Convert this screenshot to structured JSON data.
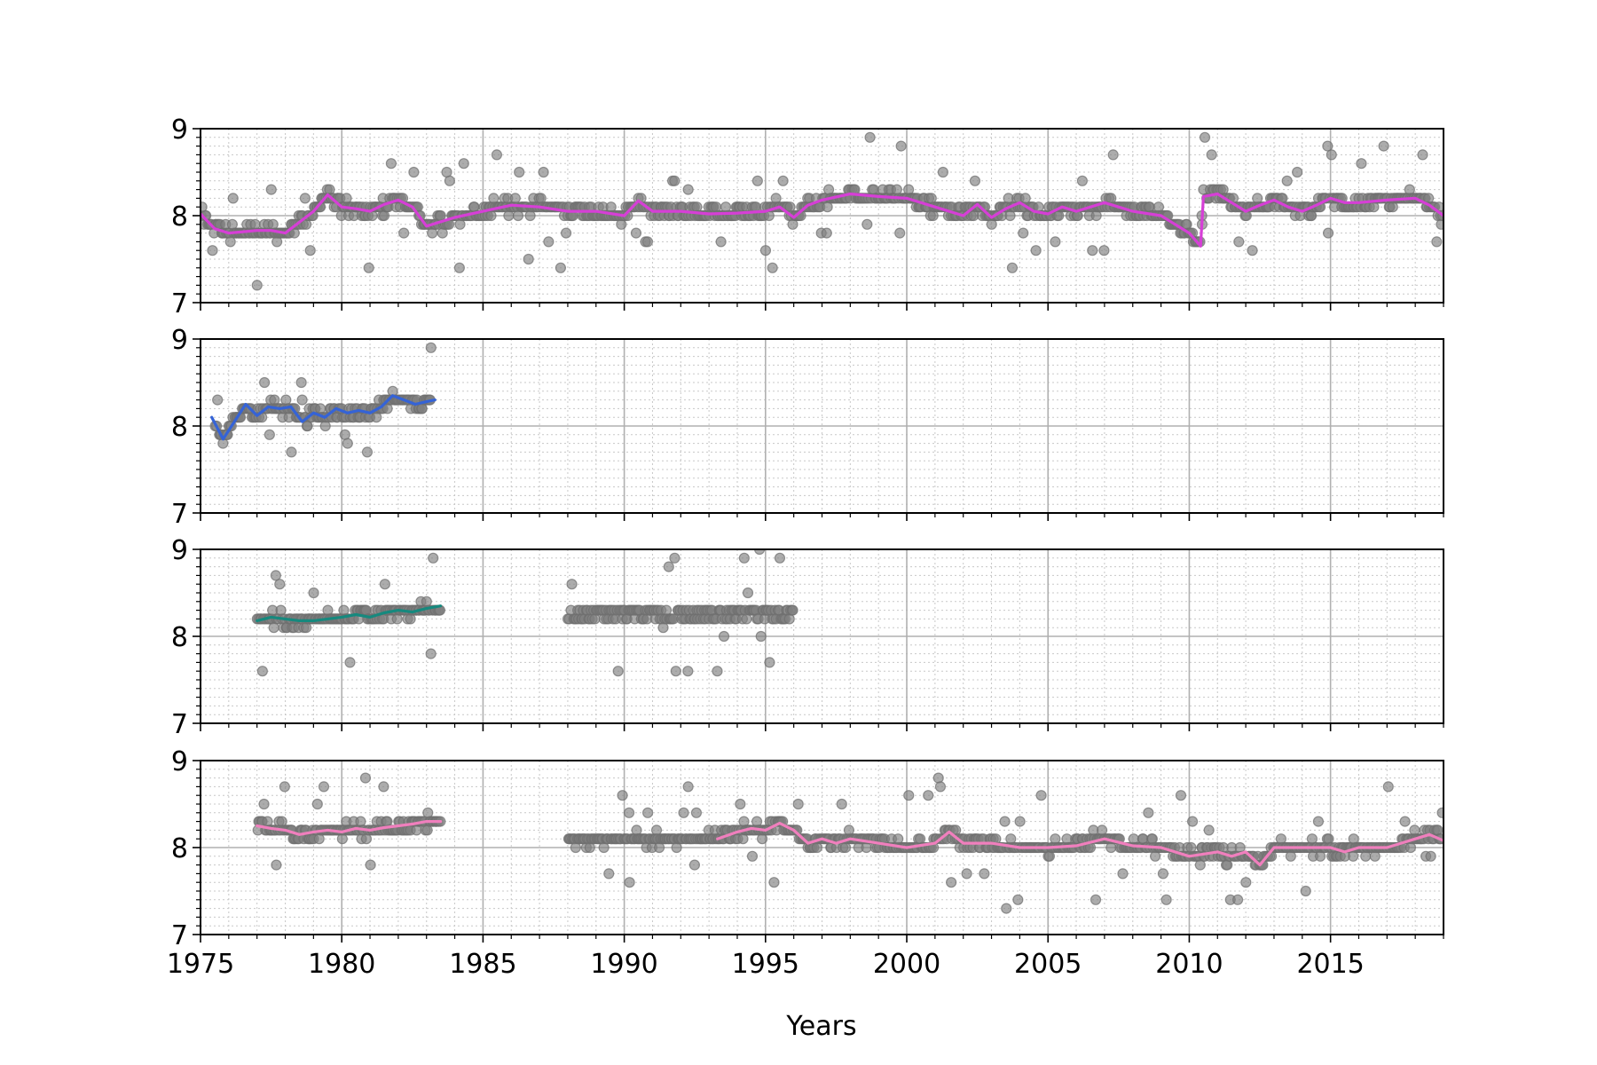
{
  "figure": {
    "xlabel": "Years"
  },
  "chart_data": [
    {
      "type": "scatter",
      "xlim": [
        1975,
        2019
      ],
      "ylim": [
        7,
        9
      ],
      "x_ticks": [
        1975,
        1980,
        1985,
        1990,
        1995,
        2000,
        2005,
        2010,
        2015
      ],
      "y_ticks": [
        7,
        8,
        9
      ],
      "grid": true,
      "scatter_color": "#808080",
      "line_color": "#d63fd6",
      "scatter_segments": [
        [
          1975.0,
          2019.0
        ]
      ],
      "scatter_level": 8.05,
      "smoothed_series": {
        "x": [
          1975.0,
          1975.5,
          1976.0,
          1977.0,
          1977.5,
          1978.0,
          1979.0,
          1979.5,
          1980.0,
          1980.5,
          1981.0,
          1981.5,
          1982.0,
          1982.5,
          1983.0,
          1984.0,
          1985.0,
          1986.0,
          1987.0,
          1988.0,
          1989.0,
          1990.0,
          1990.5,
          1991.0,
          1992.0,
          1993.0,
          1994.0,
          1995.0,
          1995.5,
          1996.0,
          1996.5,
          1997.0,
          1998.0,
          1999.0,
          2000.0,
          2001.0,
          2002.0,
          2002.5,
          2003.0,
          2003.5,
          2004.0,
          2004.5,
          2005.0,
          2005.5,
          2006.0,
          2007.0,
          2008.0,
          2009.0,
          2009.5,
          2010.0,
          2010.4,
          2010.5,
          2011.0,
          2011.5,
          2012.0,
          2012.5,
          2013.0,
          2013.5,
          2014.0,
          2014.5,
          2015.0,
          2015.5,
          2016.0,
          2017.0,
          2018.0,
          2018.5,
          2019.0
        ],
        "y": [
          8.02,
          7.85,
          7.8,
          7.83,
          7.83,
          7.8,
          8.05,
          8.24,
          8.1,
          8.08,
          8.05,
          8.13,
          8.18,
          8.1,
          7.88,
          7.98,
          8.05,
          8.12,
          8.1,
          8.05,
          8.05,
          8.0,
          8.17,
          8.05,
          8.05,
          8.02,
          8.03,
          8.05,
          8.1,
          7.98,
          8.12,
          8.18,
          8.25,
          8.22,
          8.2,
          8.1,
          8.0,
          8.13,
          7.98,
          8.08,
          8.15,
          8.05,
          8.02,
          8.1,
          8.05,
          8.15,
          8.05,
          8.0,
          7.9,
          7.8,
          7.65,
          8.22,
          8.25,
          8.15,
          8.05,
          8.12,
          8.18,
          8.1,
          8.05,
          8.12,
          8.2,
          8.15,
          8.15,
          8.18,
          8.2,
          8.12,
          8.0
        ]
      }
    },
    {
      "type": "scatter",
      "xlim": [
        1975,
        2019
      ],
      "ylim": [
        7,
        9
      ],
      "x_ticks": [
        1975,
        1980,
        1985,
        1990,
        1995,
        2000,
        2005,
        2010,
        2015
      ],
      "y_ticks": [
        7,
        8,
        9
      ],
      "grid": true,
      "scatter_color": "#808080",
      "line_color": "#3563d6",
      "scatter_segments": [
        [
          1975.5,
          1983.2
        ]
      ],
      "scatter_level": 8.1,
      "smoothed_series": {
        "x": [
          1975.4,
          1975.8,
          1976.2,
          1976.6,
          1977.0,
          1977.4,
          1977.8,
          1978.2,
          1978.6,
          1979.0,
          1979.4,
          1979.8,
          1980.2,
          1980.6,
          1981.0,
          1981.4,
          1981.8,
          1982.2,
          1982.6,
          1983.0,
          1983.3
        ],
        "y": [
          8.1,
          7.85,
          8.05,
          8.25,
          8.12,
          8.22,
          8.2,
          8.22,
          8.05,
          8.15,
          8.1,
          8.2,
          8.15,
          8.18,
          8.15,
          8.22,
          8.35,
          8.3,
          8.25,
          8.28,
          8.3
        ]
      }
    },
    {
      "type": "scatter",
      "xlim": [
        1975,
        2019
      ],
      "ylim": [
        7,
        9
      ],
      "x_ticks": [
        1975,
        1980,
        1985,
        1990,
        1995,
        2000,
        2005,
        2010,
        2015
      ],
      "y_ticks": [
        7,
        8,
        9
      ],
      "grid": true,
      "scatter_color": "#808080",
      "line_color": "#16897e",
      "scatter_segments": [
        [
          1977.0,
          1983.5
        ],
        [
          1988.0,
          1996.0
        ]
      ],
      "scatter_level": 8.25,
      "smoothed_series": {
        "x": [
          1977.0,
          1977.5,
          1978.0,
          1978.5,
          1979.0,
          1979.5,
          1980.0,
          1980.5,
          1981.0,
          1981.5,
          1982.0,
          1982.5,
          1983.0,
          1983.5
        ],
        "y": [
          8.18,
          8.22,
          8.2,
          8.18,
          8.18,
          8.2,
          8.22,
          8.25,
          8.22,
          8.27,
          8.3,
          8.28,
          8.32,
          8.35
        ]
      }
    },
    {
      "type": "scatter",
      "xlim": [
        1975,
        2019
      ],
      "ylim": [
        7,
        9
      ],
      "x_ticks": [
        1975,
        1980,
        1985,
        1990,
        1995,
        2000,
        2005,
        2010,
        2015
      ],
      "y_ticks": [
        7,
        8,
        9
      ],
      "grid": true,
      "scatter_color": "#808080",
      "line_color": "#f07fbd",
      "scatter_segments": [
        [
          1977.0,
          1983.5
        ],
        [
          1988.0,
          1996.0
        ],
        [
          1996.0,
          2019.0
        ]
      ],
      "scatter_level": 8.1,
      "smoothed_series": {
        "x": [
          1977.0,
          1977.5,
          1978.0,
          1978.5,
          1979.0,
          1979.5,
          1980.0,
          1980.5,
          1981.0,
          1981.5,
          1982.0,
          1982.5,
          1983.0,
          1983.5
        ],
        "y": [
          8.25,
          8.22,
          8.2,
          8.15,
          8.18,
          8.2,
          8.18,
          8.22,
          8.2,
          8.23,
          8.25,
          8.27,
          8.3,
          8.3
        ]
      },
      "smoothed_series_2": {
        "x": [
          1993.3,
          1994.0,
          1994.5,
          1995.0,
          1995.5,
          1996.0,
          1996.5,
          1997.0,
          1997.5,
          1998.0,
          1999.0,
          2000.0,
          2001.0,
          2001.5,
          2002.0,
          2003.0,
          2004.0,
          2005.0,
          2006.0,
          2007.0,
          2008.0,
          2009.0,
          2010.0,
          2011.0,
          2011.5,
          2012.0,
          2012.5,
          2013.0,
          2014.0,
          2015.0,
          2015.5,
          2016.0,
          2017.0,
          2017.5,
          2018.0,
          2018.5,
          2019.0
        ],
        "y": [
          8.1,
          8.18,
          8.22,
          8.2,
          8.28,
          8.2,
          8.05,
          8.1,
          8.05,
          8.1,
          8.05,
          8.0,
          8.05,
          8.18,
          8.05,
          8.05,
          8.0,
          8.0,
          8.02,
          8.1,
          8.02,
          8.0,
          7.9,
          7.95,
          7.9,
          7.95,
          7.8,
          8.0,
          8.0,
          8.0,
          7.95,
          8.0,
          8.0,
          8.05,
          8.1,
          8.15,
          8.08
        ]
      }
    }
  ]
}
